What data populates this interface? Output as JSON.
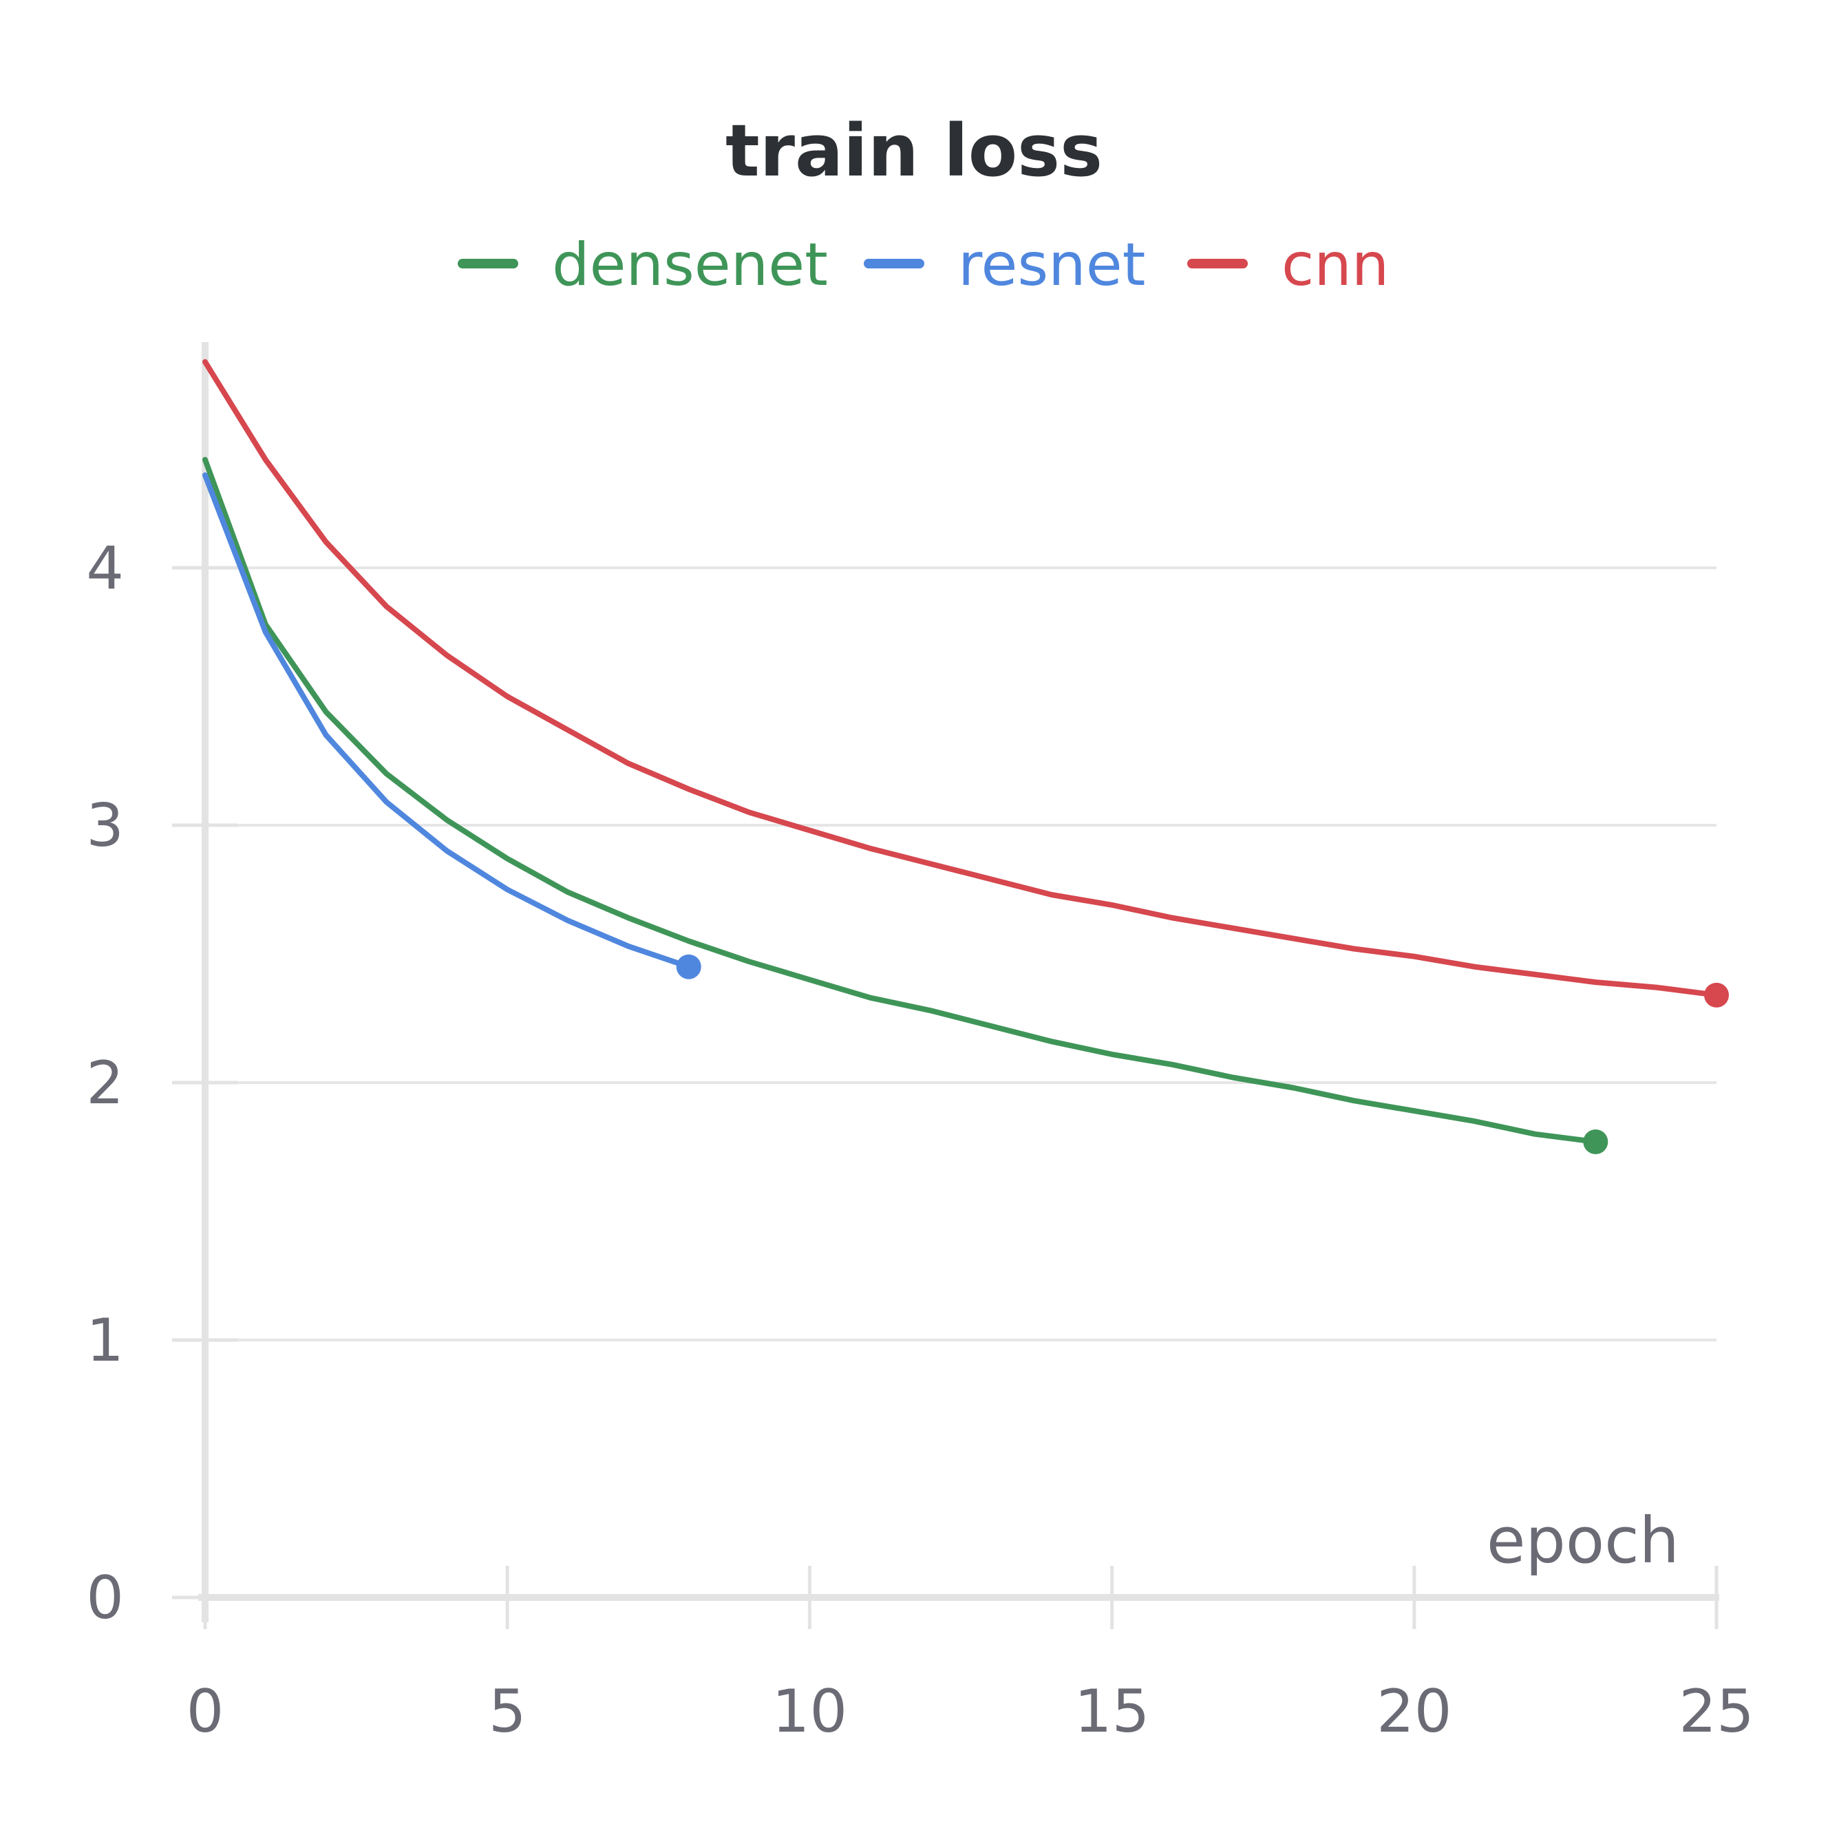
{
  "chart_data": {
    "type": "line",
    "title": "train loss",
    "xlabel": "epoch",
    "ylabel": "",
    "xlim": [
      0,
      25
    ],
    "ylim": [
      0,
      4.85
    ],
    "xticks": [
      0,
      5,
      10,
      15,
      20,
      25
    ],
    "yticks": [
      0,
      1,
      2,
      3,
      4
    ],
    "grid": true,
    "legend_position": "top",
    "series": [
      {
        "name": "densenet",
        "color": "#3f9558",
        "x": [
          0,
          1,
          2,
          3,
          4,
          5,
          6,
          7,
          8,
          9,
          10,
          11,
          12,
          13,
          14,
          15,
          16,
          17,
          18,
          19,
          20,
          21,
          22,
          23
        ],
        "y": [
          4.42,
          3.78,
          3.44,
          3.2,
          3.02,
          2.87,
          2.74,
          2.64,
          2.55,
          2.47,
          2.4,
          2.33,
          2.28,
          2.22,
          2.16,
          2.11,
          2.07,
          2.02,
          1.98,
          1.93,
          1.89,
          1.85,
          1.8,
          1.77
        ]
      },
      {
        "name": "resnet",
        "color": "#5087de",
        "x": [
          0,
          1,
          2,
          3,
          4,
          5,
          6,
          7,
          8
        ],
        "y": [
          4.36,
          3.75,
          3.35,
          3.09,
          2.9,
          2.75,
          2.63,
          2.53,
          2.45
        ]
      },
      {
        "name": "cnn",
        "color": "#d6474e",
        "x": [
          0,
          1,
          2,
          3,
          4,
          5,
          6,
          7,
          8,
          9,
          10,
          11,
          12,
          13,
          14,
          15,
          16,
          17,
          18,
          19,
          20,
          21,
          22,
          23,
          24,
          25
        ],
        "y": [
          4.8,
          4.42,
          4.1,
          3.85,
          3.66,
          3.5,
          3.37,
          3.24,
          3.14,
          3.05,
          2.98,
          2.91,
          2.85,
          2.79,
          2.73,
          2.69,
          2.64,
          2.6,
          2.56,
          2.52,
          2.49,
          2.45,
          2.42,
          2.39,
          2.37,
          2.34
        ]
      }
    ]
  }
}
